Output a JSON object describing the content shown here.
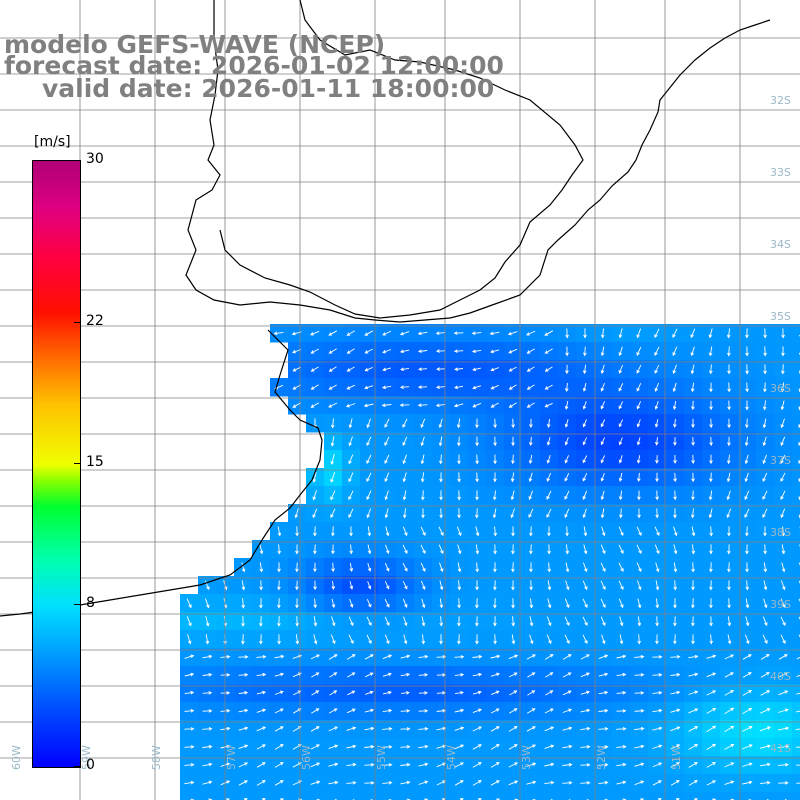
{
  "header": {
    "model": "modelo GEFS-WAVE (NCEP)",
    "forecast_date": "forecast date: 2026-01-02 12:00:00",
    "valid_date": "valid date: 2026-01-11 18:00:00"
  },
  "colorbar": {
    "unit": "[m/s]",
    "ticks": [
      "30",
      "22",
      "15",
      "8",
      "0"
    ],
    "tick_values": [
      30,
      22,
      15,
      8,
      0
    ],
    "min": 0,
    "max": 30
  },
  "map": {
    "lat_labels": [
      "32S",
      "33S",
      "34S",
      "35S",
      "36S",
      "37S",
      "38S",
      "39S",
      "40S",
      "41S"
    ],
    "lat_values": [
      -32,
      -33,
      -34,
      -35,
      -36,
      -37,
      -38,
      -39,
      -40,
      -41
    ],
    "lon_labels": [
      "60W",
      "59W",
      "58W",
      "57W",
      "56W",
      "55W",
      "54W",
      "53W",
      "52W",
      "51W"
    ],
    "colors": {
      "land": "#ffffff",
      "coast": "#000000",
      "grid": "#808080",
      "arrow": "#ffffff",
      "title": "#808080"
    }
  }
}
